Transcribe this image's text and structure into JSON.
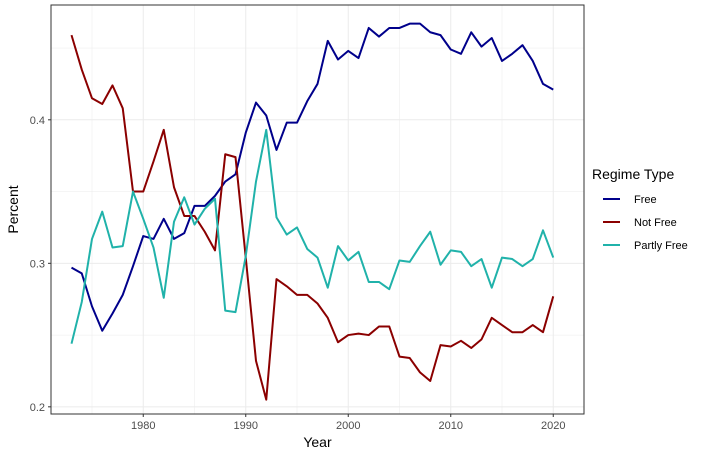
{
  "chart_data": {
    "type": "line",
    "title": "",
    "xlabel": "Year",
    "ylabel": "Percent",
    "xlim": [
      1971,
      2023
    ],
    "ylim": [
      0.195,
      0.48
    ],
    "x_ticks": [
      1980,
      1990,
      2000,
      2010,
      2020
    ],
    "x_tick_labels": [
      "1980",
      "1990",
      "2000",
      "2010",
      "2020"
    ],
    "y_ticks": [
      0.2,
      0.3,
      0.4
    ],
    "y_tick_labels": [
      "0.2",
      "0.3",
      "0.4"
    ],
    "grid": true,
    "legend": {
      "title": "Regime Type",
      "position": "right"
    },
    "x": [
      1973,
      1974,
      1975,
      1976,
      1977,
      1978,
      1979,
      1980,
      1981,
      1982,
      1983,
      1984,
      1985,
      1986,
      1987,
      1988,
      1989,
      1990,
      1991,
      1992,
      1993,
      1994,
      1995,
      1996,
      1997,
      1998,
      1999,
      2000,
      2001,
      2002,
      2003,
      2004,
      2005,
      2006,
      2007,
      2008,
      2009,
      2010,
      2011,
      2012,
      2013,
      2014,
      2015,
      2016,
      2017,
      2018,
      2019,
      2020
    ],
    "series": [
      {
        "name": "Free",
        "color": "#00008b",
        "values": [
          0.297,
          0.293,
          0.27,
          0.253,
          0.265,
          0.278,
          0.298,
          0.319,
          0.317,
          0.331,
          0.317,
          0.321,
          0.34,
          0.34,
          0.347,
          0.357,
          0.362,
          0.391,
          0.412,
          0.403,
          0.379,
          0.398,
          0.398,
          0.413,
          0.425,
          0.455,
          0.442,
          0.448,
          0.443,
          0.464,
          0.458,
          0.464,
          0.464,
          0.467,
          0.467,
          0.461,
          0.459,
          0.449,
          0.446,
          0.461,
          0.451,
          0.457,
          0.441,
          0.446,
          0.452,
          0.441,
          0.425,
          0.421
        ]
      },
      {
        "name": "Not Free",
        "color": "#8b0000",
        "values": [
          0.459,
          0.435,
          0.415,
          0.411,
          0.424,
          0.408,
          0.35,
          0.35,
          0.371,
          0.393,
          0.353,
          0.333,
          0.333,
          0.322,
          0.309,
          0.376,
          0.374,
          0.304,
          0.232,
          0.205,
          0.289,
          0.284,
          0.278,
          0.278,
          0.272,
          0.262,
          0.245,
          0.25,
          0.251,
          0.25,
          0.256,
          0.256,
          0.235,
          0.234,
          0.224,
          0.218,
          0.243,
          0.242,
          0.246,
          0.241,
          0.247,
          0.262,
          0.257,
          0.252,
          0.252,
          0.257,
          0.252,
          0.277
        ]
      },
      {
        "name": "Partly Free",
        "color": "#20b2aa",
        "values": [
          0.244,
          0.273,
          0.317,
          0.336,
          0.311,
          0.312,
          0.35,
          0.331,
          0.311,
          0.276,
          0.329,
          0.346,
          0.327,
          0.338,
          0.345,
          0.267,
          0.266,
          0.305,
          0.357,
          0.393,
          0.332,
          0.32,
          0.325,
          0.31,
          0.304,
          0.283,
          0.312,
          0.302,
          0.308,
          0.287,
          0.287,
          0.282,
          0.302,
          0.301,
          0.312,
          0.322,
          0.299,
          0.309,
          0.308,
          0.298,
          0.303,
          0.283,
          0.304,
          0.303,
          0.298,
          0.303,
          0.323,
          0.304
        ]
      }
    ]
  }
}
